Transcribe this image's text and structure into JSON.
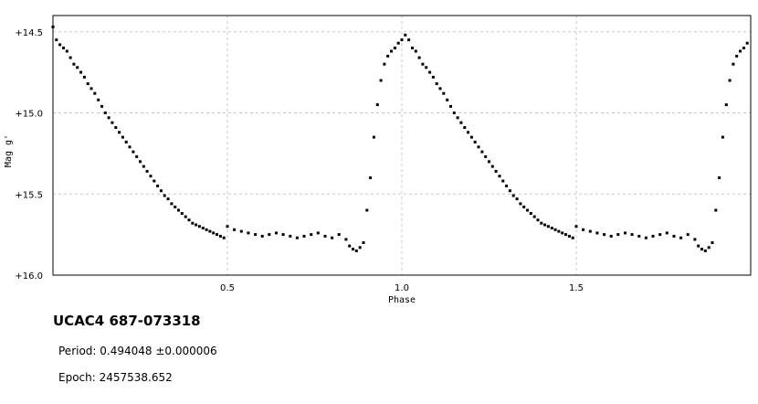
{
  "object": {
    "name": "UCAC4 687-073318",
    "period_label": "Period: ",
    "period_value": "0.494048 ±0.000006",
    "epoch_label": "Epoch: ",
    "epoch_value": "2457538.652"
  },
  "chart_data": {
    "type": "scatter",
    "xlabel": "Phase",
    "ylabel": "Mag g'",
    "xlim": [
      0.0,
      2.0
    ],
    "ylim": [
      16.0,
      14.4
    ],
    "y_inverted": true,
    "grid": true,
    "x_ticks": [
      {
        "value": 0.5,
        "label": "0.5"
      },
      {
        "value": 1.0,
        "label": "1.0"
      },
      {
        "value": 1.5,
        "label": "1.5"
      }
    ],
    "y_ticks": [
      {
        "value": 14.5,
        "label": "+14.5"
      },
      {
        "value": 15.0,
        "label": "+15.0"
      },
      {
        "value": 15.5,
        "label": "+15.5"
      },
      {
        "value": 16.0,
        "label": "+16.0"
      }
    ],
    "marker_color": "#000000",
    "grid_color": "#c8c8c8",
    "series": [
      {
        "points": [
          [
            0.0,
            14.47
          ],
          [
            0.01,
            14.55
          ],
          [
            0.02,
            14.58
          ],
          [
            0.03,
            14.6
          ],
          [
            0.04,
            14.62
          ],
          [
            0.05,
            14.66
          ],
          [
            0.06,
            14.7
          ],
          [
            0.07,
            14.72
          ],
          [
            0.08,
            14.75
          ],
          [
            0.09,
            14.78
          ],
          [
            0.1,
            14.82
          ],
          [
            0.11,
            14.85
          ],
          [
            0.12,
            14.88
          ],
          [
            0.13,
            14.92
          ],
          [
            0.14,
            14.96
          ],
          [
            0.15,
            15.0
          ],
          [
            0.16,
            15.03
          ],
          [
            0.17,
            15.06
          ],
          [
            0.18,
            15.09
          ],
          [
            0.19,
            15.12
          ],
          [
            0.2,
            15.15
          ],
          [
            0.21,
            15.18
          ],
          [
            0.22,
            15.21
          ],
          [
            0.23,
            15.24
          ],
          [
            0.24,
            15.27
          ],
          [
            0.25,
            15.3
          ],
          [
            0.26,
            15.33
          ],
          [
            0.27,
            15.36
          ],
          [
            0.28,
            15.39
          ],
          [
            0.29,
            15.42
          ],
          [
            0.3,
            15.45
          ],
          [
            0.31,
            15.48
          ],
          [
            0.32,
            15.51
          ],
          [
            0.33,
            15.53
          ],
          [
            0.34,
            15.56
          ],
          [
            0.35,
            15.58
          ],
          [
            0.36,
            15.6
          ],
          [
            0.37,
            15.62
          ],
          [
            0.38,
            15.64
          ],
          [
            0.39,
            15.66
          ],
          [
            0.4,
            15.68
          ],
          [
            0.41,
            15.69
          ],
          [
            0.42,
            15.7
          ],
          [
            0.43,
            15.71
          ],
          [
            0.44,
            15.72
          ],
          [
            0.45,
            15.73
          ],
          [
            0.46,
            15.74
          ],
          [
            0.47,
            15.75
          ],
          [
            0.48,
            15.76
          ],
          [
            0.49,
            15.77
          ],
          [
            0.5,
            15.7
          ],
          [
            0.52,
            15.72
          ],
          [
            0.54,
            15.73
          ],
          [
            0.56,
            15.74
          ],
          [
            0.58,
            15.75
          ],
          [
            0.6,
            15.76
          ],
          [
            0.62,
            15.75
          ],
          [
            0.64,
            15.74
          ],
          [
            0.66,
            15.75
          ],
          [
            0.68,
            15.76
          ],
          [
            0.7,
            15.77
          ],
          [
            0.72,
            15.76
          ],
          [
            0.74,
            15.75
          ],
          [
            0.76,
            15.74
          ],
          [
            0.78,
            15.76
          ],
          [
            0.8,
            15.77
          ],
          [
            0.82,
            15.75
          ],
          [
            0.84,
            15.78
          ],
          [
            0.85,
            15.82
          ],
          [
            0.86,
            15.84
          ],
          [
            0.87,
            15.85
          ],
          [
            0.88,
            15.83
          ],
          [
            0.89,
            15.8
          ],
          [
            0.9,
            15.6
          ],
          [
            0.91,
            15.4
          ],
          [
            0.92,
            15.15
          ],
          [
            0.93,
            14.95
          ],
          [
            0.94,
            14.8
          ],
          [
            0.95,
            14.7
          ],
          [
            0.96,
            14.65
          ],
          [
            0.97,
            14.62
          ],
          [
            0.98,
            14.6
          ],
          [
            0.99,
            14.57
          ],
          [
            1.0,
            14.55
          ],
          [
            1.01,
            14.52
          ],
          [
            1.02,
            14.55
          ],
          [
            1.03,
            14.6
          ],
          [
            1.04,
            14.62
          ],
          [
            1.05,
            14.66
          ],
          [
            1.06,
            14.7
          ],
          [
            1.07,
            14.72
          ],
          [
            1.08,
            14.75
          ],
          [
            1.09,
            14.78
          ],
          [
            1.1,
            14.82
          ],
          [
            1.11,
            14.85
          ],
          [
            1.12,
            14.88
          ],
          [
            1.13,
            14.92
          ],
          [
            1.14,
            14.96
          ],
          [
            1.15,
            15.0
          ],
          [
            1.16,
            15.03
          ],
          [
            1.17,
            15.06
          ],
          [
            1.18,
            15.09
          ],
          [
            1.19,
            15.12
          ],
          [
            1.2,
            15.15
          ],
          [
            1.21,
            15.18
          ],
          [
            1.22,
            15.21
          ],
          [
            1.23,
            15.24
          ],
          [
            1.24,
            15.27
          ],
          [
            1.25,
            15.3
          ],
          [
            1.26,
            15.33
          ],
          [
            1.27,
            15.36
          ],
          [
            1.28,
            15.39
          ],
          [
            1.29,
            15.42
          ],
          [
            1.3,
            15.45
          ],
          [
            1.31,
            15.48
          ],
          [
            1.32,
            15.51
          ],
          [
            1.33,
            15.53
          ],
          [
            1.34,
            15.56
          ],
          [
            1.35,
            15.58
          ],
          [
            1.36,
            15.6
          ],
          [
            1.37,
            15.62
          ],
          [
            1.38,
            15.64
          ],
          [
            1.39,
            15.66
          ],
          [
            1.4,
            15.68
          ],
          [
            1.41,
            15.69
          ],
          [
            1.42,
            15.7
          ],
          [
            1.43,
            15.71
          ],
          [
            1.44,
            15.72
          ],
          [
            1.45,
            15.73
          ],
          [
            1.46,
            15.74
          ],
          [
            1.47,
            15.75
          ],
          [
            1.48,
            15.76
          ],
          [
            1.49,
            15.77
          ],
          [
            1.5,
            15.7
          ],
          [
            1.52,
            15.72
          ],
          [
            1.54,
            15.73
          ],
          [
            1.56,
            15.74
          ],
          [
            1.58,
            15.75
          ],
          [
            1.6,
            15.76
          ],
          [
            1.62,
            15.75
          ],
          [
            1.64,
            15.74
          ],
          [
            1.66,
            15.75
          ],
          [
            1.68,
            15.76
          ],
          [
            1.7,
            15.77
          ],
          [
            1.72,
            15.76
          ],
          [
            1.74,
            15.75
          ],
          [
            1.76,
            15.74
          ],
          [
            1.78,
            15.76
          ],
          [
            1.8,
            15.77
          ],
          [
            1.82,
            15.75
          ],
          [
            1.84,
            15.78
          ],
          [
            1.85,
            15.82
          ],
          [
            1.86,
            15.84
          ],
          [
            1.87,
            15.85
          ],
          [
            1.88,
            15.83
          ],
          [
            1.89,
            15.8
          ],
          [
            1.9,
            15.6
          ],
          [
            1.91,
            15.4
          ],
          [
            1.92,
            15.15
          ],
          [
            1.93,
            14.95
          ],
          [
            1.94,
            14.8
          ],
          [
            1.95,
            14.7
          ],
          [
            1.96,
            14.65
          ],
          [
            1.97,
            14.62
          ],
          [
            1.98,
            14.6
          ],
          [
            1.99,
            14.57
          ]
        ]
      }
    ]
  }
}
